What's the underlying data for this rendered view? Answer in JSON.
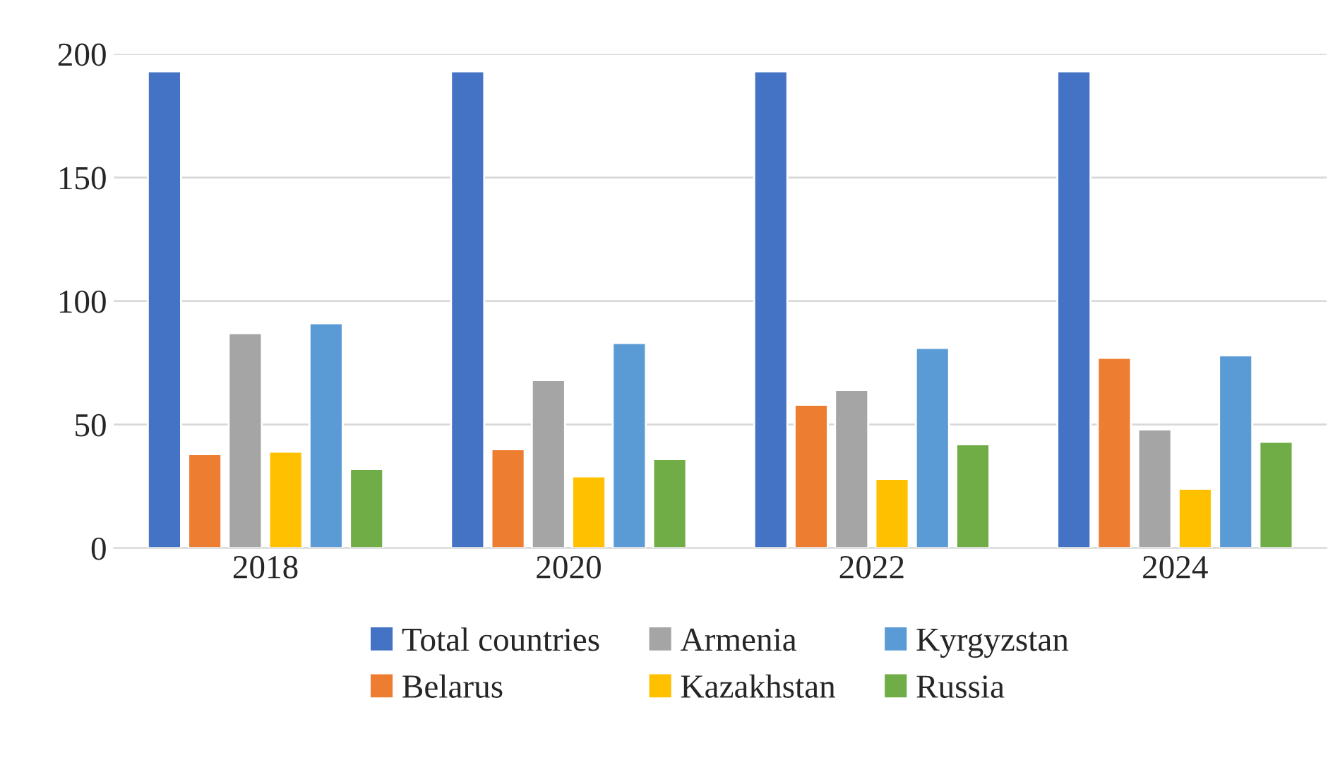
{
  "chart_data": {
    "type": "bar",
    "categories": [
      "2018",
      "2020",
      "2022",
      "2024"
    ],
    "series": [
      {
        "name": "Total countries",
        "color": "#4472c4",
        "values": [
          193,
          193,
          193,
          193
        ]
      },
      {
        "name": "Belarus",
        "color": "#ed7d31",
        "values": [
          38,
          40,
          58,
          77
        ]
      },
      {
        "name": "Armenia",
        "color": "#a5a5a5",
        "values": [
          87,
          68,
          64,
          48
        ]
      },
      {
        "name": "Kazakhstan",
        "color": "#ffc000",
        "values": [
          39,
          29,
          28,
          24
        ]
      },
      {
        "name": "Kyrgyzstan",
        "color": "#5b9bd5",
        "values": [
          91,
          83,
          81,
          78
        ]
      },
      {
        "name": "Russia",
        "color": "#70ad47",
        "values": [
          32,
          36,
          42,
          43
        ]
      }
    ],
    "ylim": [
      0,
      200
    ],
    "yticks": [
      0,
      50,
      100,
      150,
      200
    ],
    "grid": "y",
    "legend": "bottom"
  }
}
